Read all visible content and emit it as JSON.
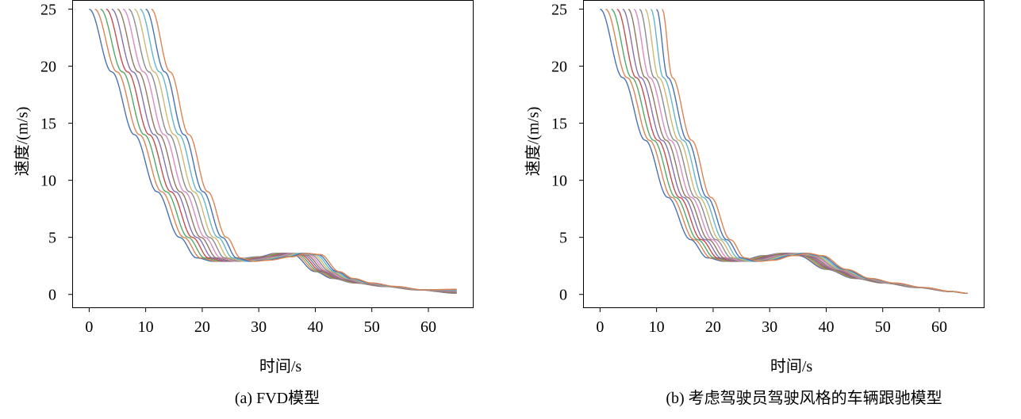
{
  "chart_data": [
    {
      "type": "line",
      "caption": "(a) FVD模型",
      "xlabel": "时间/s",
      "ylabel": "速度/(m/s)",
      "xlim": [
        -3,
        68
      ],
      "ylim": [
        -1.2,
        25.8
      ],
      "xticks": [
        0,
        10,
        20,
        30,
        40,
        50,
        60
      ],
      "yticks": [
        0,
        5,
        10,
        15,
        20,
        25
      ],
      "grid": false,
      "series_count": 12,
      "series_colors": [
        "#4c72b0",
        "#dd8452",
        "#55a868",
        "#c44e52",
        "#8172b3",
        "#937860",
        "#da8bc3",
        "#8c8c8c",
        "#ccb974",
        "#64b5cd",
        "#4c72b0",
        "#dd8452"
      ],
      "start_times": [
        0,
        1,
        2,
        3,
        4,
        5,
        6,
        7,
        8,
        9,
        10,
        11
      ],
      "curve_shape": {
        "points_t": [
          0,
          4,
          8,
          12,
          16,
          19,
          22,
          25,
          30,
          33,
          36,
          40,
          43,
          47,
          52,
          58,
          65
        ],
        "points_v_first": [
          25,
          19.5,
          14.0,
          9.0,
          5.0,
          3.2,
          2.9,
          3.0,
          3.3,
          3.6,
          3.5,
          2.0,
          1.4,
          1.0,
          0.7,
          0.4,
          0.1
        ],
        "points_v_last_end": 0.45
      }
    },
    {
      "type": "line",
      "caption": "(b) 考虑驾驶员驾驶风格的车辆跟驰模型",
      "xlabel": "时间/s",
      "ylabel": "速度/(m/s)",
      "xlim": [
        -3,
        68
      ],
      "ylim": [
        -1.2,
        25.8
      ],
      "xticks": [
        0,
        10,
        20,
        30,
        40,
        50,
        60
      ],
      "yticks": [
        0,
        5,
        10,
        15,
        20,
        25
      ],
      "grid": false,
      "series_count": 12,
      "series_colors": [
        "#4c72b0",
        "#dd8452",
        "#55a868",
        "#c44e52",
        "#8172b3",
        "#937860",
        "#da8bc3",
        "#8c8c8c",
        "#ccb974",
        "#64b5cd",
        "#4c72b0",
        "#dd8452"
      ],
      "start_times": [
        0,
        1,
        2,
        3,
        4,
        5,
        6,
        7,
        8,
        9,
        10,
        11
      ],
      "curve_shape": {
        "points_t": [
          0,
          4,
          8,
          12,
          16,
          19,
          22,
          25,
          29,
          32,
          35,
          40,
          45,
          50,
          56,
          62,
          65
        ],
        "points_v_first": [
          25,
          19.0,
          13.5,
          8.5,
          4.8,
          3.2,
          2.9,
          3.0,
          3.4,
          3.6,
          3.4,
          2.2,
          1.4,
          1.0,
          0.6,
          0.25,
          0.1
        ],
        "points_v_last_end": 0.1
      }
    }
  ]
}
